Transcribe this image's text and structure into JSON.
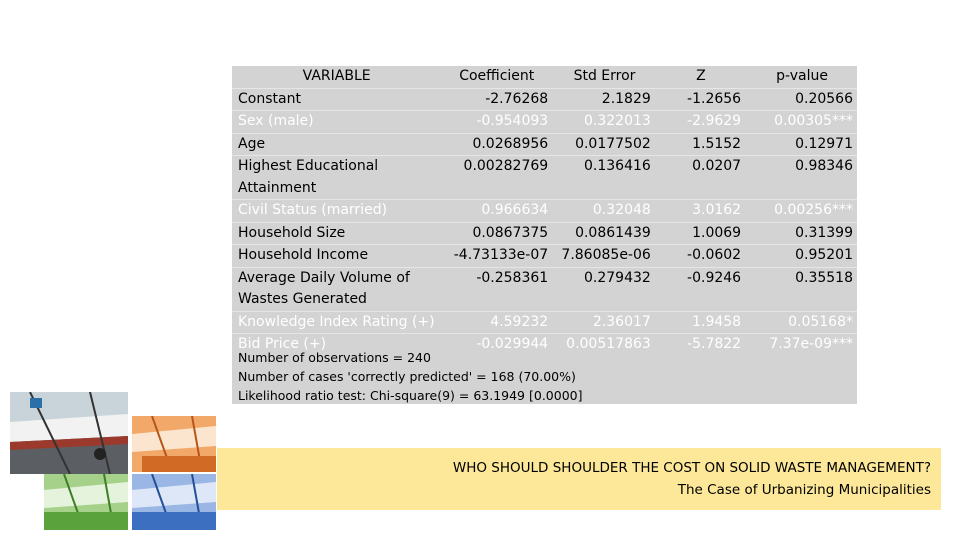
{
  "table": {
    "headers": [
      "VARIABLE",
      "Coefficient",
      "Std Error",
      "Z",
      "p-value"
    ],
    "rows": [
      {
        "variable": "Constant",
        "coef": "-2.76268",
        "se": "2.1829",
        "z": "-1.2656",
        "p": "0.20566",
        "tone": "dark"
      },
      {
        "variable": "Sex (male)",
        "coef": "-0.954093",
        "se": "0.322013",
        "z": "-2.9629",
        "p": "0.00305***",
        "tone": "light"
      },
      {
        "variable": "Age",
        "coef": "0.0268956",
        "se": "0.0177502",
        "z": "1.5152",
        "p": "0.12971",
        "tone": "dark"
      },
      {
        "variable": "Highest Educational Attainment",
        "coef": "0.00282769",
        "se": "0.136416",
        "z": "0.0207",
        "p": "0.98346",
        "tone": "dark"
      },
      {
        "variable": "Civil Status (married)",
        "coef": "0.966634",
        "se": "0.32048",
        "z": "3.0162",
        "p": "0.00256***",
        "tone": "light"
      },
      {
        "variable": "Household Size",
        "coef": "0.0867375",
        "se": "0.0861439",
        "z": "1.0069",
        "p": "0.31399",
        "tone": "dark"
      },
      {
        "variable": "Household Income",
        "coef": "-4.73133e-07",
        "se": "7.86085e-06",
        "z": "-0.0602",
        "p": "0.95201",
        "tone": "dark"
      },
      {
        "variable": "Average Daily Volume of Wastes Generated",
        "coef": "-0.258361",
        "se": "0.279432",
        "z": "-0.9246",
        "p": "0.35518",
        "tone": "dark"
      },
      {
        "variable": "Knowledge Index Rating (+)",
        "coef": "4.59232",
        "se": "2.36017",
        "z": "1.9458",
        "p": "0.05168*",
        "tone": "light"
      },
      {
        "variable": "Bid Price (+)",
        "coef": "-0.029944",
        "se": "0.00517863",
        "z": "-5.7822",
        "p": "7.37e-09***",
        "tone": "light"
      }
    ],
    "notes": [
      "Number of observations = 240",
      "Number of cases 'correctly predicted' = 168 (70.00%)",
      "Likelihood ratio test: Chi-square(9) = 63.1949 [0.0000]"
    ]
  },
  "banner": {
    "title": "WHO SHOULD SHOULDER THE COST ON SOLID WASTE MANAGEMENT?",
    "subtitle": "The Case of Urbanizing Municipalities"
  },
  "mosaic": {
    "tiles": [
      {
        "name": "photo-original",
        "color": "#6f7f8f"
      },
      {
        "name": "photo-orange",
        "color": "#e8823a"
      },
      {
        "name": "photo-green",
        "color": "#5aa23c"
      },
      {
        "name": "photo-blue",
        "color": "#3c6fc0"
      }
    ]
  }
}
